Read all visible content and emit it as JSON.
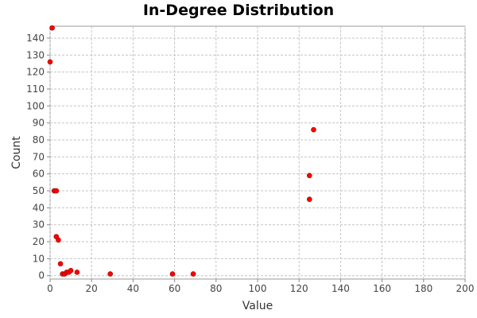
{
  "chart_data": {
    "type": "scatter",
    "title": "In-Degree Distribution",
    "xlabel": "Value",
    "ylabel": "Count",
    "xlim": [
      0,
      200
    ],
    "ylim": [
      -2,
      147
    ],
    "xticks": [
      0,
      20,
      40,
      60,
      80,
      100,
      120,
      140,
      160,
      180,
      200
    ],
    "yticks": [
      0,
      10,
      20,
      30,
      40,
      50,
      60,
      70,
      80,
      90,
      100,
      110,
      120,
      130,
      140
    ],
    "grid": true,
    "legend": "none",
    "point_color": "#ff0000",
    "points": [
      {
        "x": 1,
        "y": 146
      },
      {
        "x": 0,
        "y": 126
      },
      {
        "x": 2,
        "y": 50
      },
      {
        "x": 3,
        "y": 50
      },
      {
        "x": 3,
        "y": 23
      },
      {
        "x": 4,
        "y": 21
      },
      {
        "x": 5,
        "y": 7
      },
      {
        "x": 6,
        "y": 1
      },
      {
        "x": 7,
        "y": 1
      },
      {
        "x": 8,
        "y": 2
      },
      {
        "x": 9,
        "y": 2
      },
      {
        "x": 10,
        "y": 3
      },
      {
        "x": 13,
        "y": 2
      },
      {
        "x": 29,
        "y": 1
      },
      {
        "x": 59,
        "y": 1
      },
      {
        "x": 69,
        "y": 1
      },
      {
        "x": 125,
        "y": 45
      },
      {
        "x": 125,
        "y": 59
      },
      {
        "x": 127,
        "y": 86
      }
    ]
  }
}
